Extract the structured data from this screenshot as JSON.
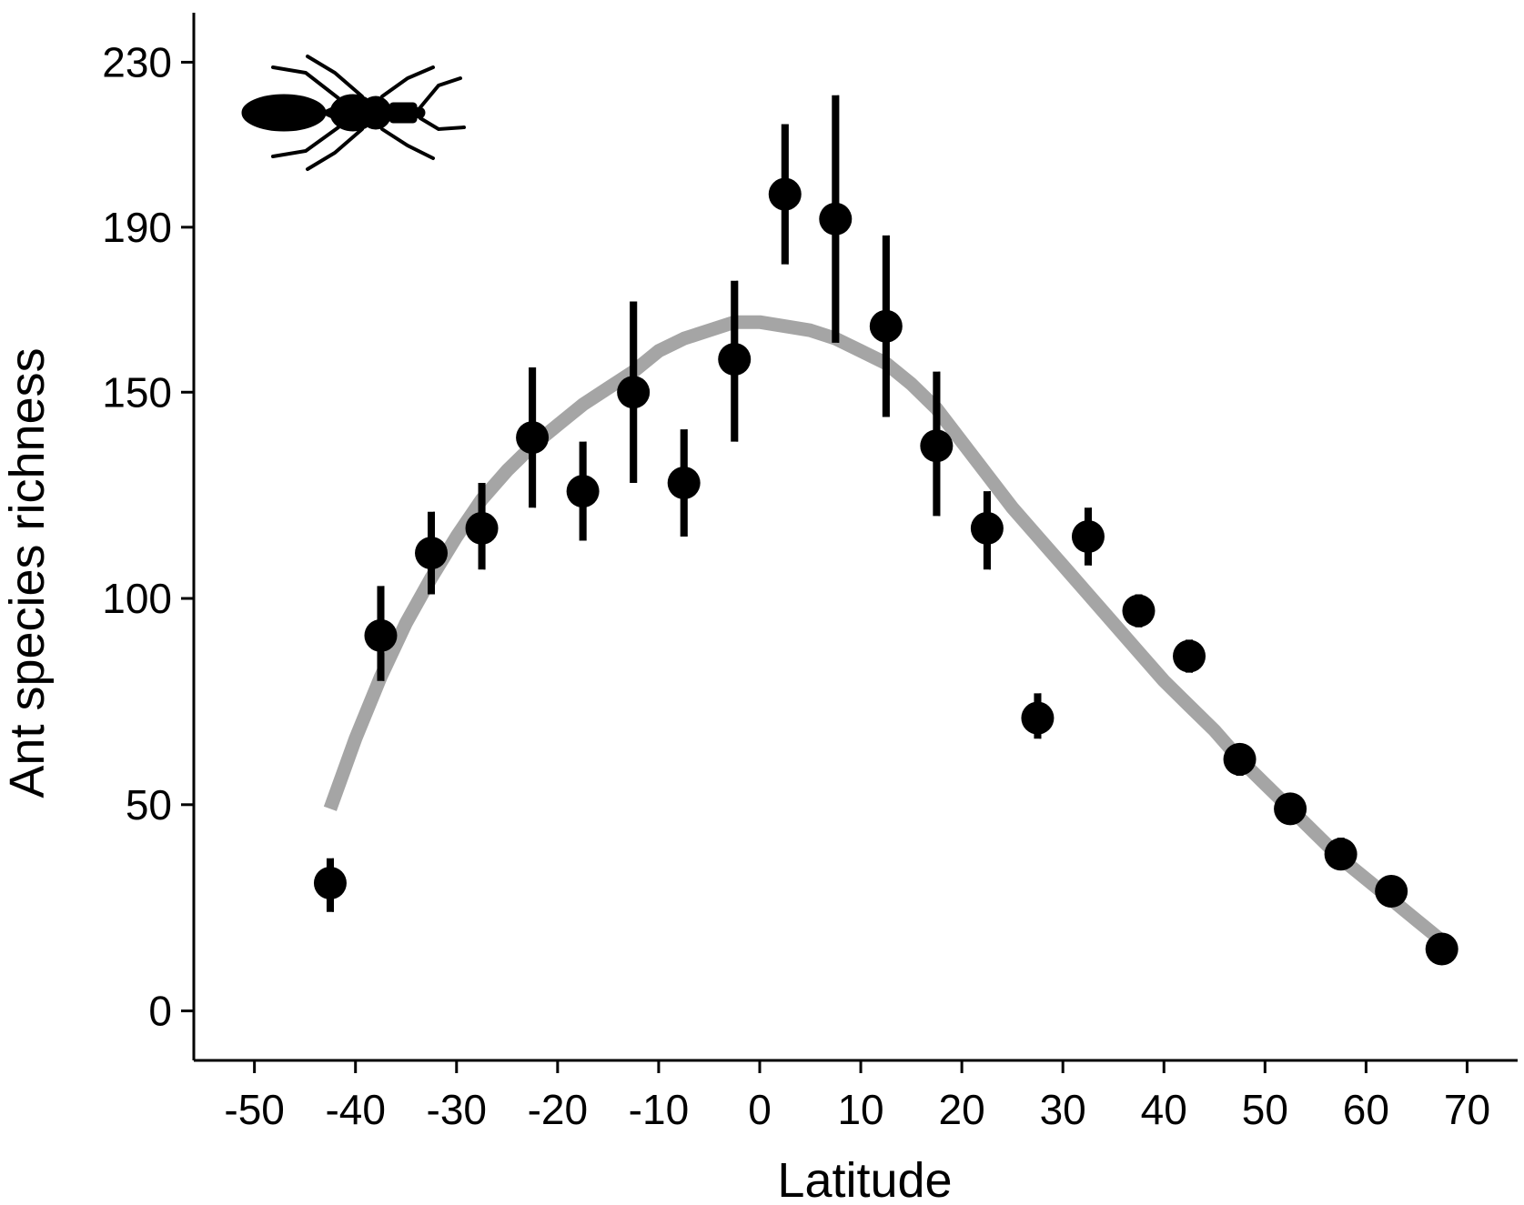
{
  "chart_data": {
    "type": "scatter",
    "xlabel": "Latitude",
    "ylabel": "Ant species richness",
    "xlim": [
      -56,
      75
    ],
    "ylim": [
      -12,
      242
    ],
    "xticks": [
      -50,
      -40,
      -30,
      -20,
      -10,
      0,
      10,
      20,
      30,
      40,
      50,
      60,
      70
    ],
    "yticks": [
      0,
      50,
      100,
      150,
      190,
      230
    ],
    "grid": false,
    "points": [
      {
        "x": -42.5,
        "y": 31,
        "lo": 24,
        "hi": 37
      },
      {
        "x": -37.5,
        "y": 91,
        "lo": 80,
        "hi": 103
      },
      {
        "x": -32.5,
        "y": 111,
        "lo": 101,
        "hi": 121
      },
      {
        "x": -27.5,
        "y": 117,
        "lo": 107,
        "hi": 128
      },
      {
        "x": -22.5,
        "y": 139,
        "lo": 122,
        "hi": 156
      },
      {
        "x": -17.5,
        "y": 126,
        "lo": 114,
        "hi": 138
      },
      {
        "x": -12.5,
        "y": 150,
        "lo": 128,
        "hi": 172
      },
      {
        "x": -7.5,
        "y": 128,
        "lo": 115,
        "hi": 141
      },
      {
        "x": -2.5,
        "y": 158,
        "lo": 138,
        "hi": 177
      },
      {
        "x": 2.5,
        "y": 198,
        "lo": 181,
        "hi": 215
      },
      {
        "x": 7.5,
        "y": 192,
        "lo": 162,
        "hi": 222
      },
      {
        "x": 12.5,
        "y": 166,
        "lo": 144,
        "hi": 188
      },
      {
        "x": 17.5,
        "y": 137,
        "lo": 120,
        "hi": 155
      },
      {
        "x": 22.5,
        "y": 117,
        "lo": 107,
        "hi": 126
      },
      {
        "x": 27.5,
        "y": 71,
        "lo": 66,
        "hi": 77
      },
      {
        "x": 32.5,
        "y": 115,
        "lo": 108,
        "hi": 122
      },
      {
        "x": 37.5,
        "y": 97,
        "lo": 93,
        "hi": 101
      },
      {
        "x": 42.5,
        "y": 86,
        "lo": 82,
        "hi": 90
      },
      {
        "x": 47.5,
        "y": 61,
        "lo": 57,
        "hi": 64
      },
      {
        "x": 52.5,
        "y": 49,
        "lo": 46,
        "hi": 52
      },
      {
        "x": 57.5,
        "y": 38,
        "lo": 35,
        "hi": 42
      },
      {
        "x": 62.5,
        "y": 29,
        "lo": 27,
        "hi": 31
      },
      {
        "x": 67.5,
        "y": 15,
        "lo": 14,
        "hi": 16
      }
    ],
    "trend": {
      "x": [
        -42.5,
        -40,
        -37.5,
        -35,
        -32.5,
        -30,
        -27.5,
        -25,
        -22.5,
        -20,
        -17.5,
        -15,
        -12.5,
        -10,
        -7.5,
        -5,
        -2.5,
        0,
        2.5,
        5,
        7.5,
        10,
        12.5,
        15,
        17.5,
        20,
        22.5,
        25,
        27.5,
        30,
        32.5,
        35,
        37.5,
        40,
        42.5,
        45,
        47.5,
        50,
        52.5,
        55,
        57.5,
        60,
        62.5,
        65,
        67.5
      ],
      "y": [
        49,
        66,
        81,
        94,
        105,
        115,
        124,
        131,
        137,
        142,
        147,
        151,
        155,
        160,
        163,
        165,
        167,
        167,
        166,
        165,
        163,
        160,
        157,
        152,
        146,
        138,
        130,
        122,
        115,
        108,
        101,
        94,
        87,
        80,
        74,
        68,
        61,
        55,
        49,
        43,
        37,
        32,
        27,
        22,
        17
      ]
    },
    "colors": {
      "points": "#000000",
      "trend": "#a5a5a5",
      "axis": "#000000"
    },
    "icon": "ant-silhouette-icon"
  }
}
